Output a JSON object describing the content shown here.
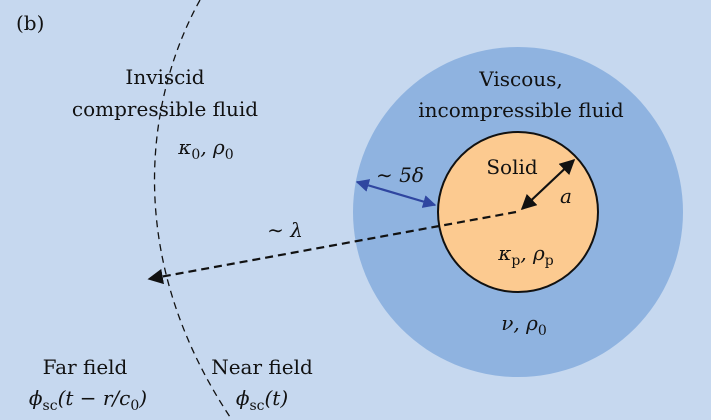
{
  "panel": "(b)",
  "regions": {
    "inviscid": [
      "Inviscid",
      "compressible fluid"
    ],
    "inviscid_props": [
      {
        "text": "κ"
      },
      {
        "sub": "0"
      },
      {
        "text": ", ρ"
      },
      {
        "sub": "0"
      }
    ],
    "viscous": [
      "Viscous,",
      "incompressible fluid"
    ],
    "viscous_props": [
      {
        "text": "ν, ρ"
      },
      {
        "sub": "0"
      }
    ],
    "solid": "Solid",
    "solid_props": [
      {
        "text": "κ"
      },
      {
        "sub": "p"
      },
      {
        "text": ", ρ"
      },
      {
        "sub": "p"
      }
    ],
    "far_field": "Far field",
    "far_field_potential": [
      {
        "text": "ϕ"
      },
      {
        "sub": "sc"
      },
      {
        "text": "(t − r/c"
      },
      {
        "sub": "0"
      },
      {
        "text": ")"
      }
    ],
    "near_field": "Near field",
    "near_field_potential": [
      {
        "text": "ϕ"
      },
      {
        "sub": "sc"
      },
      {
        "text": "(t)"
      }
    ]
  },
  "dimensions": {
    "radius": "a",
    "boundary_layer": "∼ 5δ",
    "wavelength": "∼ λ"
  }
}
